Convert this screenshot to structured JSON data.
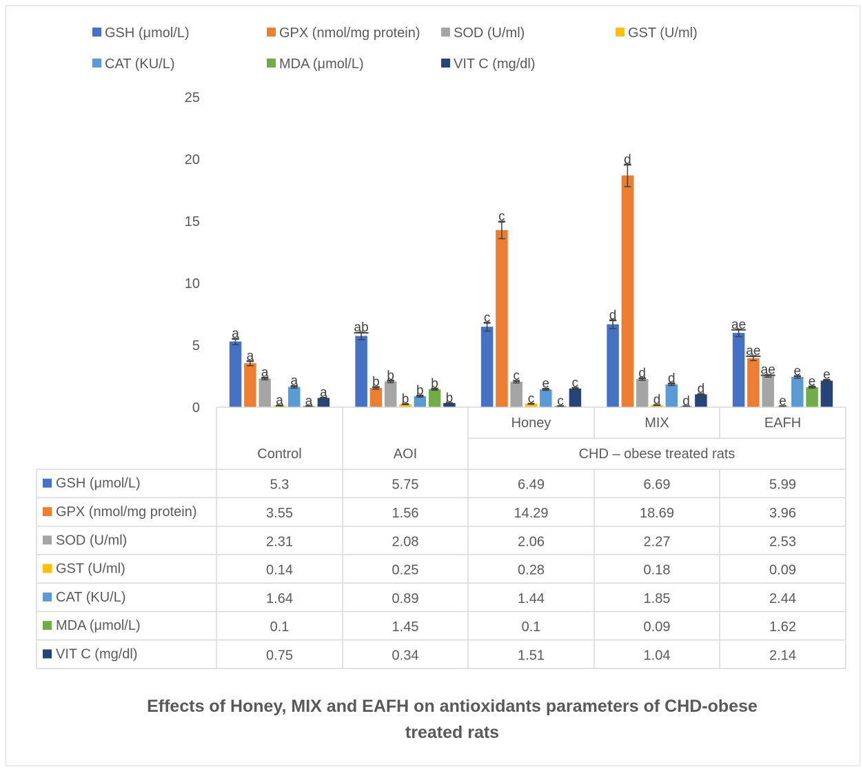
{
  "chart_data": {
    "type": "bar",
    "title": "Effects of Honey, MIX and EAFH on antioxidants parameters of CHD-obese treated rats",
    "title_lines": [
      "Effects of Honey, MIX and EAFH on antioxidants parameters of CHD-obese",
      "treated rats"
    ],
    "categories": [
      "Control",
      "AOI",
      "Honey",
      "MIX",
      "EAFH"
    ],
    "group_label": "CHD – obese treated rats",
    "grouped_categories": [
      "Honey",
      "MIX",
      "EAFH"
    ],
    "ylim": [
      0,
      25
    ],
    "yticks": [
      0,
      5,
      10,
      15,
      20,
      25
    ],
    "legend_position": "top",
    "grid": false,
    "has_data_table": true,
    "series": [
      {
        "name": "GSH (μmol/L)",
        "color": "#4472C4",
        "values": [
          5.3,
          5.75,
          6.49,
          6.69,
          5.99
        ],
        "value_labels": [
          "5.3",
          "5.75",
          "6.49",
          "6.69",
          "5.99"
        ],
        "errors": [
          0.25,
          0.3,
          0.35,
          0.35,
          0.3
        ],
        "sig": [
          "a",
          "ab",
          "c",
          "d",
          "ae"
        ]
      },
      {
        "name": "GPX (nmol/mg protein)",
        "color": "#ED7D31",
        "values": [
          3.55,
          1.56,
          14.29,
          18.69,
          3.96
        ],
        "value_labels": [
          "3.55",
          "1.56",
          "14.29",
          "18.69",
          "3.96"
        ],
        "errors": [
          0.2,
          0.1,
          0.7,
          0.9,
          0.2
        ],
        "sig": [
          "a",
          "b",
          "c",
          "d",
          "ae"
        ]
      },
      {
        "name": "SOD (U/ml)",
        "color": "#A5A5A5",
        "values": [
          2.31,
          2.08,
          2.06,
          2.27,
          2.53
        ],
        "value_labels": [
          "2.31",
          "2.08",
          "2.06",
          "2.27",
          "2.53"
        ],
        "errors": [
          0.1,
          0.1,
          0.1,
          0.1,
          0.1
        ],
        "sig": [
          "a",
          "b",
          "c",
          "d",
          "ae"
        ]
      },
      {
        "name": "GST (U/ml)",
        "color": "#FFC000",
        "values": [
          0.14,
          0.25,
          0.28,
          0.18,
          0.09
        ],
        "value_labels": [
          "0.14",
          "0.25",
          "0.28",
          "0.18",
          "0.09"
        ],
        "errors": [
          0.03,
          0.03,
          0.03,
          0.03,
          0.02
        ],
        "sig": [
          "a",
          "b",
          "c",
          "d",
          "e"
        ]
      },
      {
        "name": "CAT (KU/L)",
        "color": "#5B9BD5",
        "values": [
          1.64,
          0.89,
          1.44,
          1.85,
          2.44
        ],
        "value_labels": [
          "1.64",
          "0.89",
          "1.44",
          "1.85",
          "2.44"
        ],
        "errors": [
          0.1,
          0.08,
          0.08,
          0.1,
          0.1
        ],
        "sig": [
          "a",
          "b",
          "e",
          "d",
          "e"
        ]
      },
      {
        "name": "MDA (μmol/L)",
        "color": "#70AD47",
        "values": [
          0.1,
          1.45,
          0.1,
          0.09,
          1.62
        ],
        "value_labels": [
          "0.1",
          "1.45",
          "0.1",
          "0.09",
          "1.62"
        ],
        "errors": [
          0.02,
          0.08,
          0.02,
          0.02,
          0.08
        ],
        "sig": [
          "a",
          "b",
          "c",
          "d",
          "e"
        ]
      },
      {
        "name": "VIT C (mg/dl)",
        "color": "#264478",
        "values": [
          0.75,
          0.34,
          1.51,
          1.04,
          2.14
        ],
        "value_labels": [
          "0.75",
          "0.34",
          "1.51",
          "1.04",
          "2.14"
        ],
        "errors": [
          0.05,
          0.03,
          0.08,
          0.06,
          0.1
        ],
        "sig": [
          "a",
          "b",
          "c",
          "d",
          "e"
        ]
      }
    ]
  }
}
